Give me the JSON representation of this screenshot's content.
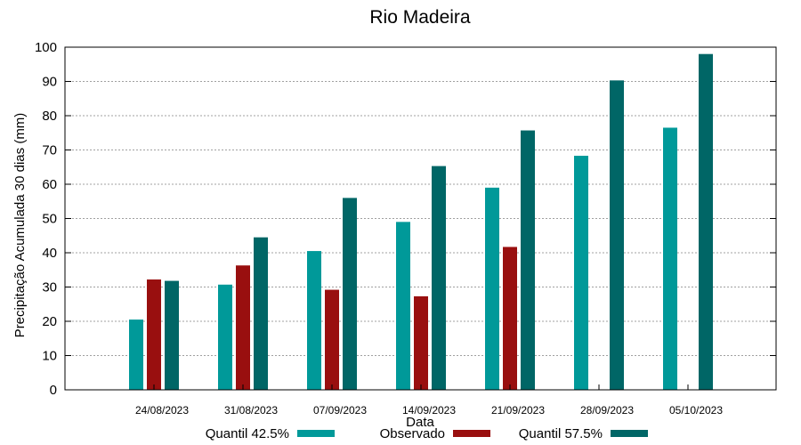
{
  "chart_data": {
    "type": "bar",
    "title": "Rio Madeira",
    "xlabel": "Data",
    "ylabel": "Precipitação Acumulada 30 dias (mm)",
    "ylim": [
      0,
      100
    ],
    "yticks": [
      "0",
      "10",
      "20",
      "30",
      "40",
      "50",
      "60",
      "70",
      "80",
      "90",
      "100"
    ],
    "grid": true,
    "legend_position": "bottom",
    "categories": [
      "24/08/2023",
      "31/08/2023",
      "07/09/2023",
      "14/09/2023",
      "21/09/2023",
      "28/09/2023",
      "05/10/2023"
    ],
    "series": [
      {
        "name": "Quantil 42.5%",
        "color": "#009999",
        "values": [
          20.5,
          30.7,
          40.5,
          49.0,
          59.0,
          68.3,
          76.5
        ]
      },
      {
        "name": "Observado",
        "color": "#990f0f",
        "values": [
          32.2,
          36.3,
          29.2,
          27.3,
          41.7,
          null,
          null
        ]
      },
      {
        "name": "Quantil 57.5%",
        "color": "#006666",
        "values": [
          31.8,
          44.5,
          56.0,
          65.3,
          75.7,
          90.3,
          98.0
        ]
      }
    ]
  }
}
